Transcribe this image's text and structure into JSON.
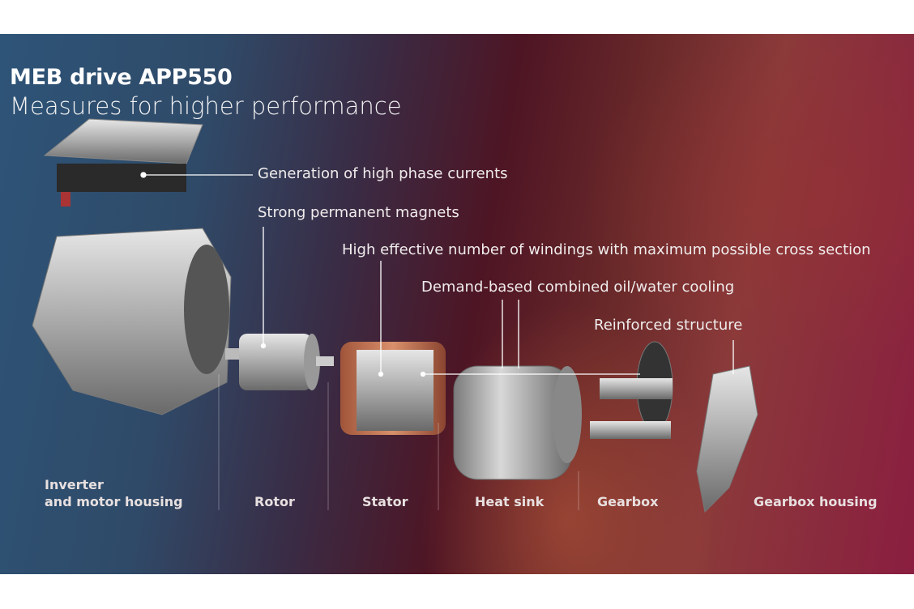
{
  "title": "MEB drive APP550",
  "subtitle": "Measures for higher performance",
  "callouts": [
    "Generation of high phase currents",
    "Strong permanent magnets",
    "High effective number of windings with maximum possible cross section",
    "Demand-based combined oil/water cooling",
    "Reinforced structure"
  ],
  "parts": [
    {
      "line1": "Inverter",
      "line2": "and motor housing"
    },
    {
      "line1": "Rotor"
    },
    {
      "line1": "Stator"
    },
    {
      "line1": "Heat sink"
    },
    {
      "line1": "Gearbox"
    },
    {
      "line1": "Gearbox housing"
    }
  ],
  "colors": {
    "background_left": "#2e5478",
    "background_mid": "#4e1524",
    "background_right": "#8a1e40",
    "text": "#ffffff"
  }
}
